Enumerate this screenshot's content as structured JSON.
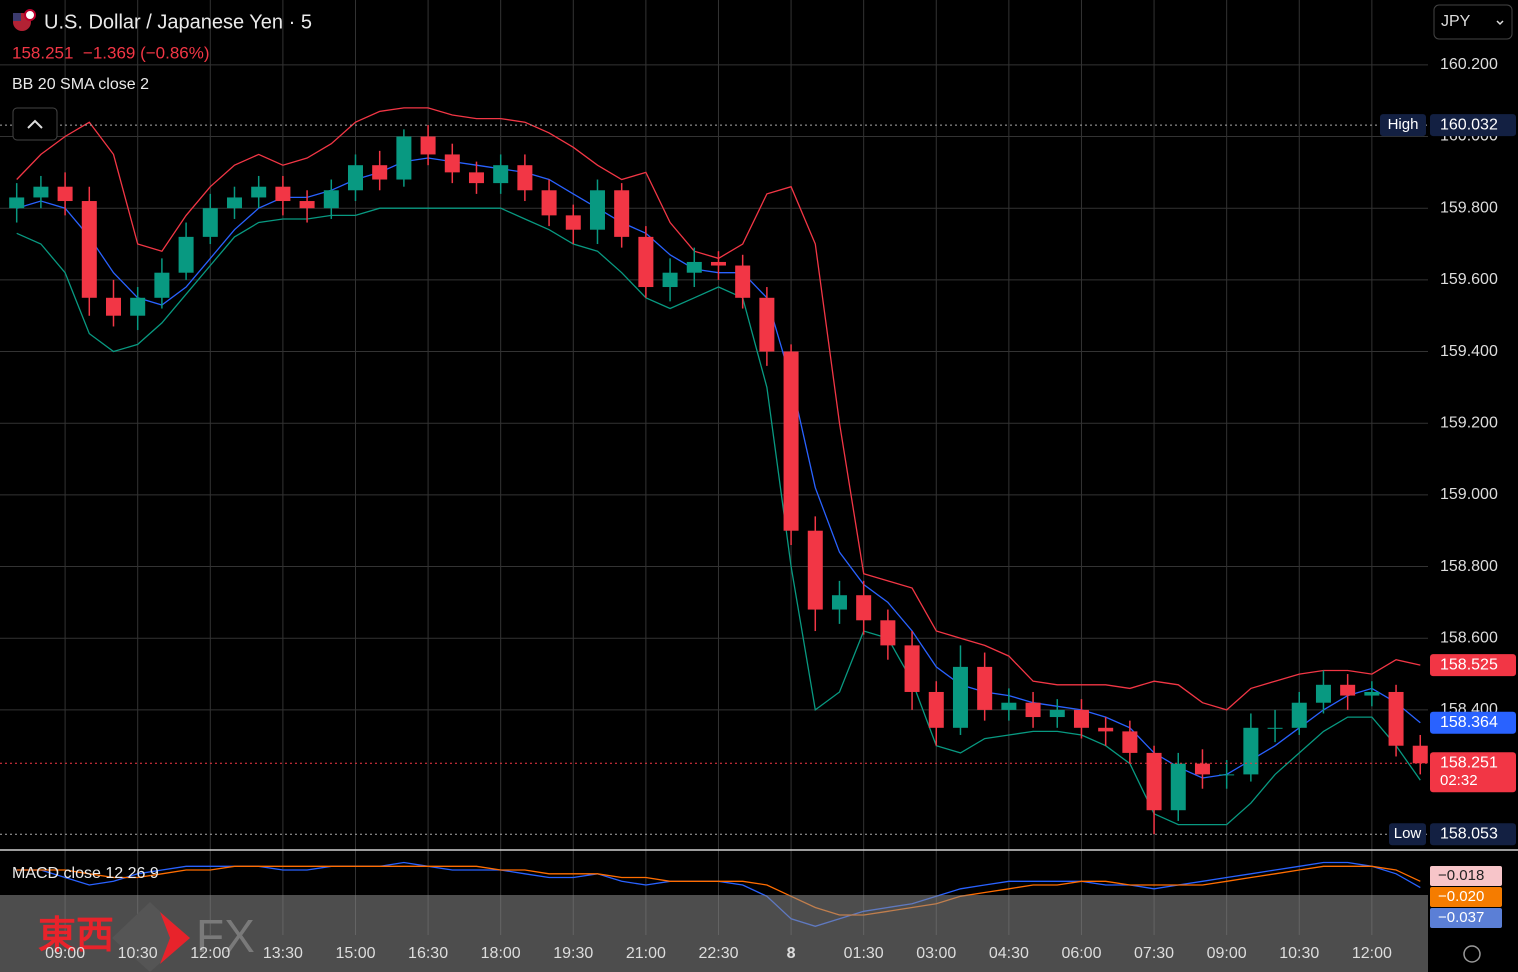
{
  "header": {
    "title": "U.S. Dollar / Japanese Yen · 5",
    "quote": "158.251  −1.369 (−0.86%)",
    "indicator": "BB 20 SMA close 2",
    "currency": "JPY"
  },
  "watermark": {
    "left": "東西",
    "right": "FX"
  },
  "chart_data": [
    {
      "type": "candlestick",
      "up_color": "#089981",
      "down_color": "#f23645",
      "xlim": [
        -0.69,
        58.32
      ],
      "ylim": [
        158.009,
        160.381
      ],
      "grid": true,
      "xticks": [
        {
          "value": 2,
          "label": "09:00"
        },
        {
          "value": 5,
          "label": "10:30"
        },
        {
          "value": 8,
          "label": "12:00"
        },
        {
          "value": 11,
          "label": "13:30"
        },
        {
          "value": 14,
          "label": "15:00"
        },
        {
          "value": 17,
          "label": "16:30"
        },
        {
          "value": 20,
          "label": "18:00"
        },
        {
          "value": 23,
          "label": "19:30"
        },
        {
          "value": 26,
          "label": "21:00"
        },
        {
          "value": 29,
          "label": "22:30"
        },
        {
          "value": 32,
          "label": "8"
        },
        {
          "value": 35,
          "label": "01:30"
        },
        {
          "value": 38,
          "label": "03:00"
        },
        {
          "value": 41,
          "label": "04:30"
        },
        {
          "value": 44,
          "label": "06:00"
        },
        {
          "value": 47,
          "label": "07:30"
        },
        {
          "value": 50,
          "label": "09:00"
        },
        {
          "value": 53,
          "label": "10:30"
        },
        {
          "value": 56,
          "label": "12:00"
        }
      ],
      "yticks": [
        {
          "value": 158.4,
          "label": "158.400"
        },
        {
          "value": 158.6,
          "label": "158.600"
        },
        {
          "value": 158.8,
          "label": "158.800"
        },
        {
          "value": 159.0,
          "label": "159.000"
        },
        {
          "value": 159.2,
          "label": "159.200"
        },
        {
          "value": 159.4,
          "label": "159.400"
        },
        {
          "value": 159.6,
          "label": "159.600"
        },
        {
          "value": 159.8,
          "label": "159.800"
        },
        {
          "value": 160.0,
          "label": "160.000"
        },
        {
          "value": 160.2,
          "label": "160.200"
        }
      ],
      "open": [
        159.8,
        159.83,
        159.86,
        159.82,
        159.55,
        159.5,
        159.55,
        159.62,
        159.72,
        159.8,
        159.83,
        159.86,
        159.82,
        159.8,
        159.85,
        159.92,
        159.88,
        160.0,
        159.95,
        159.9,
        159.87,
        159.92,
        159.85,
        159.78,
        159.74,
        159.85,
        159.72,
        159.58,
        159.62,
        159.65,
        159.64,
        159.55,
        159.4,
        158.9,
        158.68,
        158.72,
        158.65,
        158.58,
        158.45,
        158.35,
        158.52,
        158.4,
        158.42,
        158.38,
        158.4,
        158.35,
        158.34,
        158.28,
        158.12,
        158.25,
        158.22,
        158.22,
        158.35,
        158.35,
        158.42,
        158.47,
        158.44,
        158.45,
        158.3
      ],
      "high": [
        159.87,
        159.89,
        159.9,
        159.86,
        159.6,
        159.58,
        159.66,
        159.76,
        159.84,
        159.86,
        159.89,
        159.89,
        159.85,
        159.88,
        159.95,
        159.96,
        160.02,
        160.032,
        159.98,
        159.93,
        159.95,
        159.95,
        159.88,
        159.81,
        159.88,
        159.87,
        159.75,
        159.66,
        159.69,
        159.68,
        159.67,
        159.58,
        159.42,
        158.94,
        158.76,
        158.76,
        158.68,
        158.62,
        158.48,
        158.58,
        158.56,
        158.46,
        158.45,
        158.43,
        158.43,
        158.38,
        158.37,
        158.3,
        158.28,
        158.29,
        158.26,
        158.39,
        158.4,
        158.45,
        158.51,
        158.5,
        158.48,
        158.47,
        158.33
      ],
      "low": [
        159.76,
        159.8,
        159.78,
        159.5,
        159.47,
        159.46,
        159.52,
        159.6,
        159.7,
        159.77,
        159.8,
        159.78,
        159.76,
        159.77,
        159.82,
        159.85,
        159.86,
        159.92,
        159.87,
        159.84,
        159.84,
        159.82,
        159.75,
        159.7,
        159.7,
        159.69,
        159.55,
        159.54,
        159.58,
        159.6,
        159.52,
        159.36,
        158.86,
        158.62,
        158.64,
        158.61,
        158.54,
        158.4,
        158.3,
        158.33,
        158.37,
        158.37,
        158.35,
        158.35,
        158.32,
        158.3,
        158.25,
        158.053,
        158.09,
        158.18,
        158.18,
        158.2,
        158.31,
        158.33,
        158.39,
        158.4,
        158.41,
        158.27,
        158.22
      ],
      "close": [
        159.83,
        159.86,
        159.82,
        159.55,
        159.5,
        159.55,
        159.62,
        159.72,
        159.8,
        159.83,
        159.86,
        159.82,
        159.8,
        159.85,
        159.92,
        159.88,
        160.0,
        159.95,
        159.9,
        159.87,
        159.92,
        159.85,
        159.78,
        159.74,
        159.85,
        159.72,
        159.58,
        159.62,
        159.65,
        159.64,
        159.55,
        159.4,
        158.9,
        158.68,
        158.72,
        158.65,
        158.58,
        158.45,
        158.35,
        158.52,
        158.4,
        158.42,
        158.38,
        158.4,
        158.35,
        158.34,
        158.28,
        158.12,
        158.25,
        158.22,
        158.22,
        158.35,
        158.35,
        158.42,
        158.47,
        158.44,
        158.45,
        158.3,
        158.251
      ],
      "series": [
        {
          "color": "#f23645",
          "values": [
            159.88,
            159.95,
            160.0,
            160.04,
            159.95,
            159.7,
            159.68,
            159.78,
            159.86,
            159.92,
            159.95,
            159.92,
            159.94,
            159.98,
            160.04,
            160.07,
            160.08,
            160.08,
            160.06,
            160.05,
            160.05,
            160.04,
            160.01,
            159.97,
            159.92,
            159.88,
            159.9,
            159.76,
            159.68,
            159.66,
            159.7,
            159.84,
            159.86,
            159.7,
            159.2,
            158.78,
            158.76,
            158.74,
            158.62,
            158.6,
            158.58,
            158.55,
            158.48,
            158.47,
            158.47,
            158.47,
            158.46,
            158.48,
            158.47,
            158.42,
            158.4,
            158.46,
            158.48,
            158.5,
            158.51,
            158.51,
            158.5,
            158.54,
            158.525
          ]
        },
        {
          "color": "#2962ff",
          "values": [
            159.8,
            159.82,
            159.8,
            159.72,
            159.62,
            159.55,
            159.53,
            159.58,
            159.66,
            159.74,
            159.8,
            159.83,
            159.83,
            159.85,
            159.88,
            159.9,
            159.93,
            159.94,
            159.93,
            159.92,
            159.91,
            159.9,
            159.88,
            159.84,
            159.8,
            159.76,
            159.73,
            159.67,
            159.63,
            159.62,
            159.62,
            159.55,
            159.32,
            159.02,
            158.84,
            158.75,
            158.7,
            158.62,
            158.52,
            158.47,
            158.45,
            158.44,
            158.42,
            158.41,
            158.4,
            158.38,
            158.35,
            158.28,
            158.24,
            158.21,
            158.22,
            158.26,
            158.3,
            158.35,
            158.4,
            158.44,
            158.46,
            158.42,
            158.364
          ]
        },
        {
          "color": "#089981",
          "values": [
            159.73,
            159.7,
            159.62,
            159.45,
            159.4,
            159.42,
            159.48,
            159.56,
            159.64,
            159.72,
            159.76,
            159.77,
            159.77,
            159.78,
            159.78,
            159.8,
            159.8,
            159.8,
            159.8,
            159.8,
            159.8,
            159.77,
            159.74,
            159.7,
            159.68,
            159.62,
            159.55,
            159.52,
            159.55,
            159.58,
            159.55,
            159.3,
            158.8,
            158.4,
            158.45,
            158.62,
            158.6,
            158.48,
            158.3,
            158.28,
            158.32,
            158.33,
            158.34,
            158.34,
            158.33,
            158.3,
            158.25,
            158.11,
            158.08,
            158.08,
            158.08,
            158.14,
            158.22,
            158.28,
            158.34,
            158.38,
            158.38,
            158.3,
            158.204
          ]
        }
      ],
      "markers": [
        {
          "name": "High",
          "value": 160.032
        },
        {
          "name": "Low",
          "value": 158.053
        }
      ],
      "last_price": {
        "value": 158.251,
        "countdown": "02:32",
        "color": "#f23645"
      }
    },
    {
      "type": "line",
      "title": "MACD close 12 26 9",
      "xlim": [
        -0.69,
        58.32
      ],
      "ylim": [
        -0.15,
        0.05
      ],
      "series": [
        {
          "color": "#2962ff",
          "values": [
            0.01,
            0.01,
            -0.01,
            -0.03,
            -0.02,
            0.0,
            0.01,
            0.02,
            0.02,
            0.02,
            0.02,
            0.01,
            0.01,
            0.02,
            0.02,
            0.02,
            0.03,
            0.02,
            0.01,
            0.01,
            0.01,
            0.0,
            -0.01,
            -0.01,
            0.0,
            -0.02,
            -0.03,
            -0.02,
            -0.02,
            -0.02,
            -0.03,
            -0.06,
            -0.12,
            -0.14,
            -0.12,
            -0.1,
            -0.09,
            -0.08,
            -0.06,
            -0.04,
            -0.03,
            -0.02,
            -0.02,
            -0.02,
            -0.02,
            -0.03,
            -0.03,
            -0.04,
            -0.03,
            -0.02,
            -0.01,
            0.0,
            0.01,
            0.02,
            0.03,
            0.03,
            0.02,
            0.0,
            -0.037
          ]
        },
        {
          "color": "#ff6d00",
          "values": [
            0.01,
            0.01,
            0.01,
            0.0,
            -0.01,
            -0.01,
            0.0,
            0.01,
            0.01,
            0.02,
            0.02,
            0.02,
            0.02,
            0.02,
            0.02,
            0.02,
            0.02,
            0.02,
            0.02,
            0.02,
            0.01,
            0.01,
            0.0,
            0.0,
            0.0,
            -0.01,
            -0.01,
            -0.02,
            -0.02,
            -0.02,
            -0.02,
            -0.03,
            -0.06,
            -0.09,
            -0.11,
            -0.11,
            -0.1,
            -0.09,
            -0.08,
            -0.06,
            -0.05,
            -0.04,
            -0.03,
            -0.03,
            -0.02,
            -0.02,
            -0.03,
            -0.03,
            -0.03,
            -0.03,
            -0.02,
            -0.01,
            0.0,
            0.01,
            0.02,
            0.02,
            0.02,
            0.01,
            -0.02
          ]
        }
      ],
      "price_labels": [
        {
          "label": "−0.018",
          "color": "#f7c5c9",
          "text_color": "#222"
        },
        {
          "label": "−0.020",
          "color": "#f57c00",
          "text_color": "#fff"
        },
        {
          "label": "−0.037",
          "color": "#5b7fd6",
          "text_color": "#fff"
        }
      ]
    }
  ]
}
